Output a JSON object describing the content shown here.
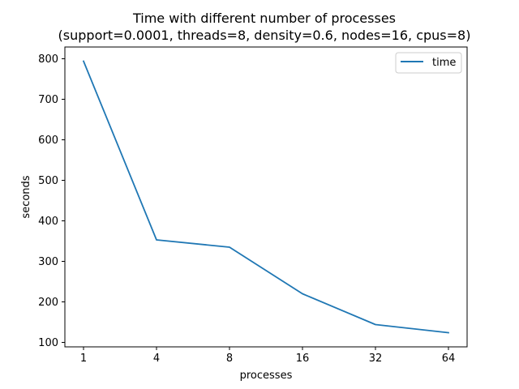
{
  "chart_data": {
    "type": "line",
    "title": "Time with different number of processes",
    "subtitle": "(support=0.0001, threads=8, density=0.6, nodes=16, cpus=8)",
    "xlabel": "processes",
    "ylabel": "seconds",
    "categories": [
      "1",
      "4",
      "8",
      "16",
      "32",
      "64"
    ],
    "series": [
      {
        "name": "time",
        "values": [
          794,
          353,
          335,
          220,
          144,
          124
        ],
        "color": "#1f77b4"
      }
    ],
    "yticks": [
      100,
      200,
      300,
      400,
      500,
      600,
      700,
      800
    ],
    "ylim": [
      89,
      829
    ],
    "grid": false,
    "legend_position": "top-right"
  }
}
